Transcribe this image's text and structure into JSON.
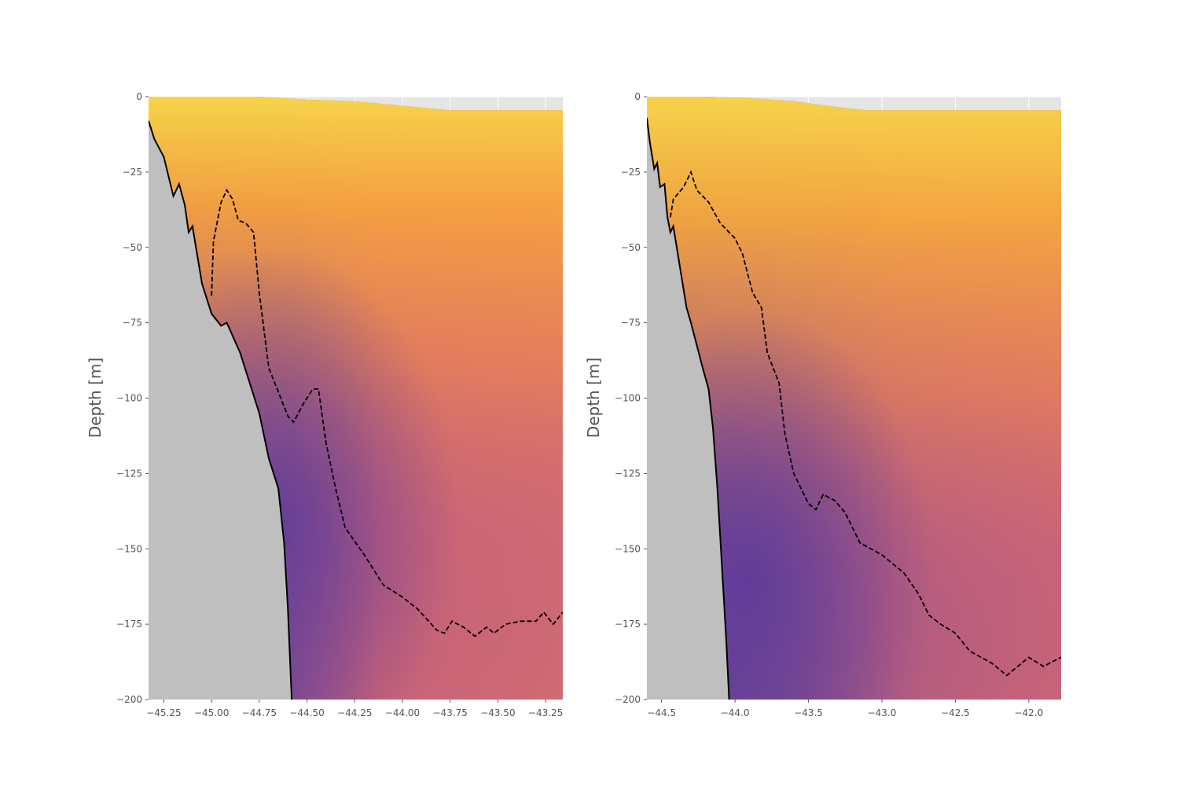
{
  "chart_data": [
    {
      "type": "heatmap",
      "title": "",
      "xlabel": "",
      "ylabel": "Depth [m]",
      "xlim": [
        -45.33,
        -43.16
      ],
      "ylim": [
        -200,
        0
      ],
      "xticks": [
        -45.25,
        -45.0,
        -44.75,
        -44.5,
        -44.25,
        -44.0,
        -43.75,
        -43.5,
        -43.25
      ],
      "xtick_labels": [
        "−45.25",
        "−45.00",
        "−44.75",
        "−44.50",
        "−44.25",
        "−44.00",
        "−43.75",
        "−43.50",
        "−43.25"
      ],
      "yticks": [
        0,
        -25,
        -50,
        -75,
        -100,
        -125,
        -150,
        -175,
        -200
      ],
      "ytick_labels": [
        "0",
        "−25",
        "−50",
        "−75",
        "−100",
        "−125",
        "−150",
        "−175",
        "−200"
      ],
      "grid": true,
      "colormap": "plasma-like (purple to yellow)",
      "colors": {
        "land": "#bfbfbf",
        "background": "#e5e5e5",
        "bottom_line": "#000000",
        "contour": "#000000"
      },
      "surface_line": [
        [
          -45.33,
          0
        ],
        [
          -45.0,
          0
        ],
        [
          -44.75,
          0
        ],
        [
          -44.5,
          -1
        ],
        [
          -44.25,
          -1.5
        ],
        [
          -44.0,
          -3
        ],
        [
          -43.75,
          -4.5
        ],
        [
          -43.5,
          -4.5
        ],
        [
          -43.16,
          -4.5
        ]
      ],
      "series": [
        {
          "role": "bottom",
          "style": "solid",
          "points": [
            [
              -45.33,
              -8
            ],
            [
              -45.3,
              -14
            ],
            [
              -45.25,
              -20
            ],
            [
              -45.2,
              -33
            ],
            [
              -45.17,
              -29
            ],
            [
              -45.14,
              -36
            ],
            [
              -45.12,
              -45
            ],
            [
              -45.1,
              -43
            ],
            [
              -45.05,
              -62
            ],
            [
              -45.0,
              -72
            ],
            [
              -44.95,
              -76
            ],
            [
              -44.92,
              -75
            ],
            [
              -44.85,
              -85
            ],
            [
              -44.75,
              -105
            ],
            [
              -44.7,
              -120
            ],
            [
              -44.65,
              -130
            ],
            [
              -44.62,
              -148
            ],
            [
              -44.6,
              -170
            ],
            [
              -44.58,
              -200
            ]
          ]
        },
        {
          "role": "contour",
          "style": "dashed",
          "points": [
            [
              -45.0,
              -66
            ],
            [
              -44.99,
              -48
            ],
            [
              -44.95,
              -35
            ],
            [
              -44.92,
              -31
            ],
            [
              -44.89,
              -34
            ],
            [
              -44.86,
              -41
            ],
            [
              -44.82,
              -42
            ],
            [
              -44.78,
              -45
            ],
            [
              -44.75,
              -65
            ],
            [
              -44.7,
              -90
            ],
            [
              -44.6,
              -106
            ],
            [
              -44.57,
              -108
            ],
            [
              -44.52,
              -102
            ],
            [
              -44.47,
              -97
            ],
            [
              -44.44,
              -97
            ],
            [
              -44.4,
              -115
            ],
            [
              -44.35,
              -130
            ],
            [
              -44.3,
              -143
            ],
            [
              -44.2,
              -152
            ],
            [
              -44.1,
              -162
            ],
            [
              -44.0,
              -166
            ],
            [
              -43.92,
              -170
            ],
            [
              -43.82,
              -177
            ],
            [
              -43.78,
              -178
            ],
            [
              -43.74,
              -174
            ],
            [
              -43.68,
              -176
            ],
            [
              -43.62,
              -179
            ],
            [
              -43.56,
              -176
            ],
            [
              -43.52,
              -178
            ],
            [
              -43.46,
              -175
            ],
            [
              -43.38,
              -174
            ],
            [
              -43.3,
              -174
            ],
            [
              -43.26,
              -171
            ],
            [
              -43.21,
              -175
            ],
            [
              -43.16,
              -171
            ]
          ]
        }
      ]
    },
    {
      "type": "heatmap",
      "title": "",
      "xlabel": "",
      "ylabel": "Depth [m]",
      "xlim": [
        -44.6,
        -41.78
      ],
      "ylim": [
        -200,
        0
      ],
      "xticks": [
        -44.5,
        -44.0,
        -43.5,
        -43.0,
        -42.5,
        -42.0
      ],
      "xtick_labels": [
        "−44.5",
        "−44.0",
        "−43.5",
        "−43.0",
        "−42.5",
        "−42.0"
      ],
      "yticks": [
        0,
        -25,
        -50,
        -75,
        -100,
        -125,
        -150,
        -175,
        -200
      ],
      "ytick_labels": [
        "0",
        "−25",
        "−50",
        "−75",
        "−100",
        "−125",
        "−150",
        "−175",
        "−200"
      ],
      "grid": true,
      "colormap": "plasma-like (purple to yellow)",
      "colors": {
        "land": "#bfbfbf",
        "background": "#e5e5e5",
        "bottom_line": "#000000",
        "contour": "#000000"
      },
      "surface_line": [
        [
          -44.6,
          0
        ],
        [
          -44.2,
          0
        ],
        [
          -43.9,
          -0.5
        ],
        [
          -43.6,
          -1.5
        ],
        [
          -43.3,
          -3.5
        ],
        [
          -43.1,
          -4.5
        ],
        [
          -42.5,
          -4.5
        ],
        [
          -41.78,
          -4.5
        ]
      ],
      "series": [
        {
          "role": "bottom",
          "style": "solid",
          "points": [
            [
              -44.6,
              -7
            ],
            [
              -44.58,
              -15
            ],
            [
              -44.55,
              -24
            ],
            [
              -44.53,
              -22
            ],
            [
              -44.51,
              -30
            ],
            [
              -44.48,
              -29
            ],
            [
              -44.46,
              -40
            ],
            [
              -44.44,
              -45
            ],
            [
              -44.42,
              -43
            ],
            [
              -44.38,
              -55
            ],
            [
              -44.33,
              -70
            ],
            [
              -44.3,
              -75
            ],
            [
              -44.22,
              -90
            ],
            [
              -44.18,
              -97
            ],
            [
              -44.15,
              -110
            ],
            [
              -44.12,
              -130
            ],
            [
              -44.09,
              -155
            ],
            [
              -44.06,
              -180
            ],
            [
              -44.04,
              -200
            ]
          ]
        },
        {
          "role": "contour",
          "style": "dashed",
          "points": [
            [
              -44.44,
              -40
            ],
            [
              -44.42,
              -34
            ],
            [
              -44.35,
              -30
            ],
            [
              -44.3,
              -25
            ],
            [
              -44.26,
              -31
            ],
            [
              -44.18,
              -35
            ],
            [
              -44.1,
              -42
            ],
            [
              -44.0,
              -47
            ],
            [
              -43.95,
              -52
            ],
            [
              -43.88,
              -65
            ],
            [
              -43.82,
              -70
            ],
            [
              -43.78,
              -85
            ],
            [
              -43.7,
              -95
            ],
            [
              -43.66,
              -112
            ],
            [
              -43.6,
              -125
            ],
            [
              -43.5,
              -135
            ],
            [
              -43.45,
              -137
            ],
            [
              -43.4,
              -132
            ],
            [
              -43.32,
              -134
            ],
            [
              -43.25,
              -138
            ],
            [
              -43.15,
              -148
            ],
            [
              -43.0,
              -152
            ],
            [
              -42.85,
              -158
            ],
            [
              -42.75,
              -165
            ],
            [
              -42.68,
              -172
            ],
            [
              -42.6,
              -175
            ],
            [
              -42.5,
              -178
            ],
            [
              -42.4,
              -184
            ],
            [
              -42.25,
              -188
            ],
            [
              -42.15,
              -192
            ],
            [
              -42.0,
              -186
            ],
            [
              -41.9,
              -189
            ],
            [
              -41.78,
              -186
            ]
          ]
        }
      ]
    }
  ]
}
